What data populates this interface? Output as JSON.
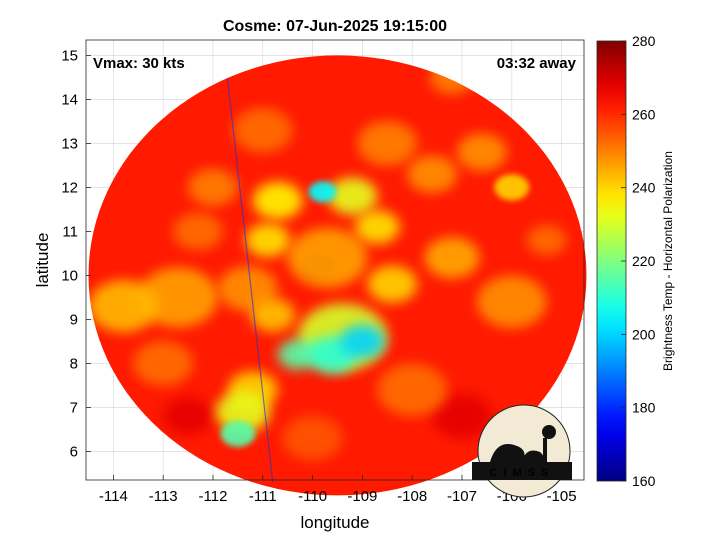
{
  "chart_data": {
    "type": "heatmap",
    "title": "Cosme: 07-Jun-2025 19:15:00",
    "xlabel": "longitude",
    "ylabel": "latitude",
    "xlim": [
      -114.55,
      -104.55
    ],
    "ylim": [
      5.35,
      15.35
    ],
    "x_ticks": [
      -114,
      -113,
      -112,
      -111,
      -110,
      -109,
      -108,
      -107,
      -106,
      -105
    ],
    "y_ticks": [
      6,
      7,
      8,
      9,
      10,
      11,
      12,
      13,
      14,
      15
    ],
    "grid": true,
    "annotations": {
      "vmax": "Vmax: 30 kts",
      "away": "03:32 away"
    },
    "colorbar": {
      "label": "Brightness Temp - Horizontal Polarization",
      "range": [
        160,
        280
      ],
      "ticks": [
        160,
        180,
        200,
        220,
        240,
        260,
        280
      ],
      "colormap": "jet"
    },
    "swath": {
      "center": [
        -109.5,
        10.0
      ],
      "radius_deg": 5.0,
      "background_value": 262
    },
    "features": [
      {
        "lon": -109.0,
        "lat": 8.5,
        "value": 200,
        "r": 0.45
      },
      {
        "lon": -109.6,
        "lat": 8.2,
        "value": 210,
        "r": 0.5
      },
      {
        "lon": -110.3,
        "lat": 8.2,
        "value": 215,
        "r": 0.4
      },
      {
        "lon": -109.4,
        "lat": 8.6,
        "value": 230,
        "r": 0.9
      },
      {
        "lon": -111.5,
        "lat": 6.4,
        "value": 215,
        "r": 0.35
      },
      {
        "lon": -111.4,
        "lat": 6.9,
        "value": 232,
        "r": 0.55
      },
      {
        "lon": -111.2,
        "lat": 7.4,
        "value": 240,
        "r": 0.5
      },
      {
        "lon": -109.8,
        "lat": 11.9,
        "value": 205,
        "r": 0.28
      },
      {
        "lon": -109.2,
        "lat": 11.8,
        "value": 232,
        "r": 0.5
      },
      {
        "lon": -110.7,
        "lat": 11.7,
        "value": 236,
        "r": 0.5
      },
      {
        "lon": -110.9,
        "lat": 10.8,
        "value": 238,
        "r": 0.45
      },
      {
        "lon": -108.7,
        "lat": 11.1,
        "value": 238,
        "r": 0.45
      },
      {
        "lon": -108.4,
        "lat": 9.8,
        "value": 240,
        "r": 0.5
      },
      {
        "lon": -109.7,
        "lat": 10.4,
        "value": 246,
        "r": 0.8
      },
      {
        "lon": -110.8,
        "lat": 9.1,
        "value": 242,
        "r": 0.45
      },
      {
        "lon": -113.8,
        "lat": 9.3,
        "value": 243,
        "r": 0.7
      },
      {
        "lon": -112.7,
        "lat": 9.5,
        "value": 246,
        "r": 0.8
      },
      {
        "lon": -111.3,
        "lat": 9.7,
        "value": 248,
        "r": 0.6
      },
      {
        "lon": -107.2,
        "lat": 10.4,
        "value": 245,
        "r": 0.55
      },
      {
        "lon": -106.0,
        "lat": 9.4,
        "value": 248,
        "r": 0.7
      },
      {
        "lon": -106.0,
        "lat": 12.0,
        "value": 240,
        "r": 0.35
      },
      {
        "lon": -106.6,
        "lat": 12.8,
        "value": 248,
        "r": 0.5
      },
      {
        "lon": -107.6,
        "lat": 12.3,
        "value": 248,
        "r": 0.5
      },
      {
        "lon": -108.5,
        "lat": 13.0,
        "value": 250,
        "r": 0.6
      },
      {
        "lon": -112.0,
        "lat": 12.0,
        "value": 250,
        "r": 0.5
      },
      {
        "lon": -111.0,
        "lat": 13.3,
        "value": 252,
        "r": 0.6
      },
      {
        "lon": -112.3,
        "lat": 11.0,
        "value": 252,
        "r": 0.5
      },
      {
        "lon": -108.0,
        "lat": 7.4,
        "value": 252,
        "r": 0.7
      },
      {
        "lon": -113.0,
        "lat": 8.0,
        "value": 252,
        "r": 0.6
      },
      {
        "lon": -107.2,
        "lat": 14.5,
        "value": 250,
        "r": 0.45
      },
      {
        "lon": -110.0,
        "lat": 6.3,
        "value": 255,
        "r": 0.6
      },
      {
        "lon": -105.3,
        "lat": 10.8,
        "value": 252,
        "r": 0.4
      },
      {
        "lon": -109.9,
        "lat": 10.2,
        "value": 272,
        "r": 0.35
      },
      {
        "lon": -112.5,
        "lat": 6.8,
        "value": 268,
        "r": 0.5
      },
      {
        "lon": -107.0,
        "lat": 6.8,
        "value": 268,
        "r": 0.6
      }
    ]
  },
  "logo": {
    "text": "CIMSS"
  }
}
